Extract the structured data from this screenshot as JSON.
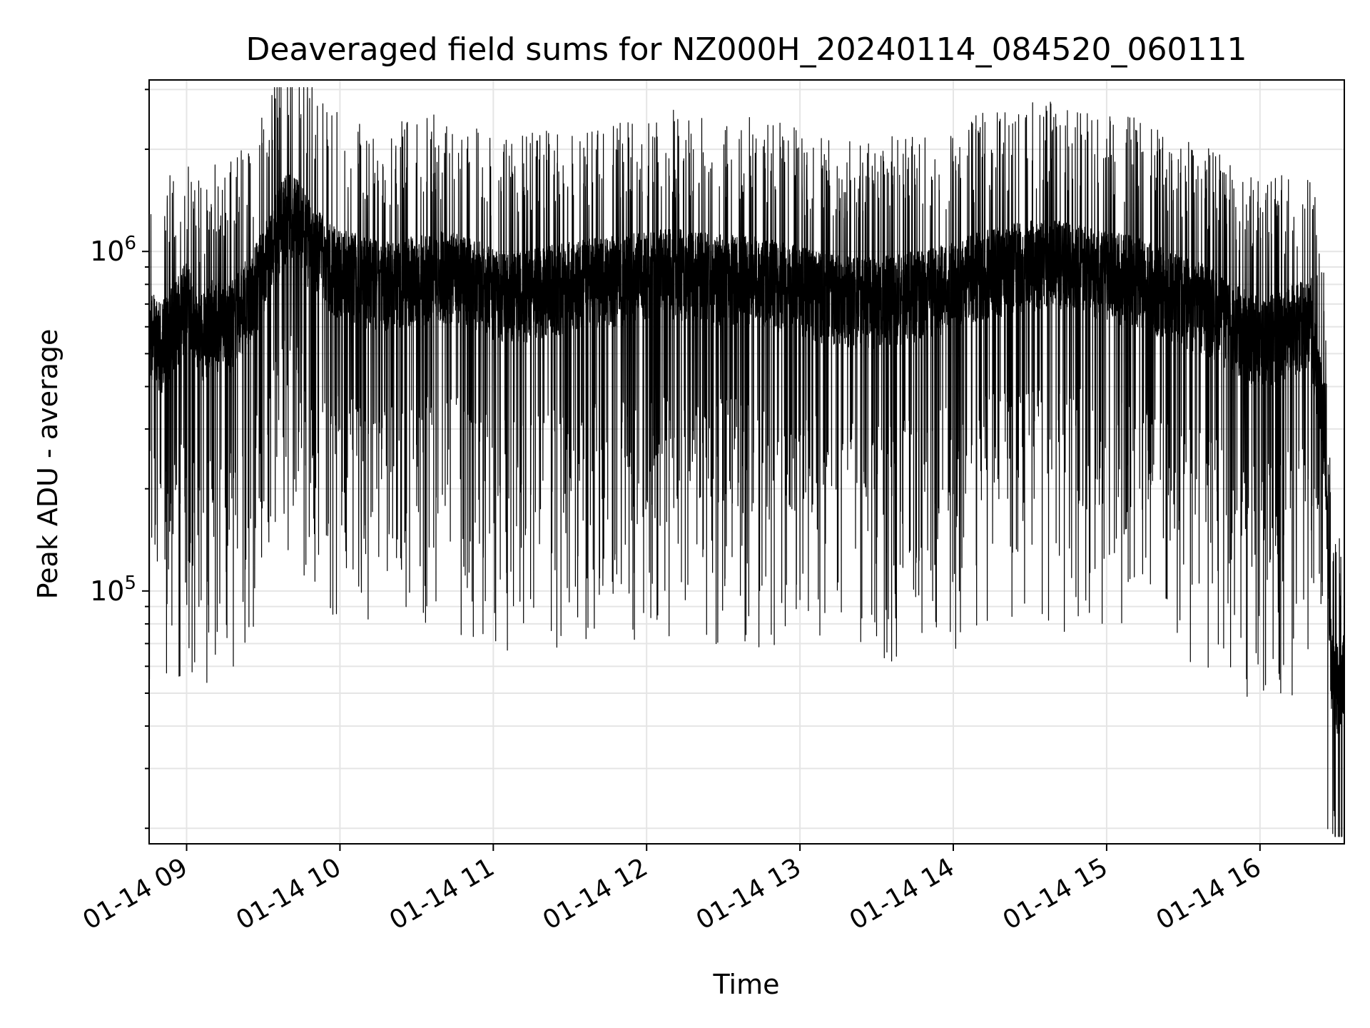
{
  "chart_data": {
    "type": "line",
    "title": "Deaveraged field sums for NZ000H_20240114_084520_060111",
    "xlabel": "Time",
    "ylabel": "Peak ADU - average",
    "yscale": "log",
    "grid": true,
    "line_color": "#000000",
    "grid_color": "#e5e5e5",
    "x_range": [
      "01-14 08:45:20",
      "01-14 16:33:00"
    ],
    "ylim": [
      18000,
      3200000
    ],
    "x_tick_labels": [
      "01-14 09",
      "01-14 10",
      "01-14 11",
      "01-14 12",
      "01-14 13",
      "01-14 14",
      "01-14 15",
      "01-14 16"
    ],
    "y_tick_labels": [
      {
        "base": "10",
        "exp": "5",
        "value": 100000
      },
      {
        "base": "10",
        "exp": "6",
        "value": 1000000
      }
    ],
    "series": [
      {
        "points": [
          [
            "01-14 08:45",
            620000
          ],
          [
            "01-14 08:50",
            540000
          ],
          [
            "01-14 08:55",
            620000
          ],
          [
            "01-14 09:00",
            720000
          ],
          [
            "01-14 09:05",
            560000
          ],
          [
            "01-14 09:10",
            640000
          ],
          [
            "01-14 09:15",
            600000
          ],
          [
            "01-14 09:20",
            680000
          ],
          [
            "01-14 09:25",
            760000
          ],
          [
            "01-14 09:30",
            900000
          ],
          [
            "01-14 09:35",
            1150000
          ],
          [
            "01-14 09:40",
            1350000
          ],
          [
            "01-14 09:45",
            1200000
          ],
          [
            "01-14 09:50",
            1050000
          ],
          [
            "01-14 09:55",
            950000
          ],
          [
            "01-14 10:00",
            900000
          ],
          [
            "01-14 10:10",
            850000
          ],
          [
            "01-14 10:20",
            820000
          ],
          [
            "01-14 10:30",
            860000
          ],
          [
            "01-14 10:40",
            880000
          ],
          [
            "01-14 10:50",
            860000
          ],
          [
            "01-14 11:00",
            780000
          ],
          [
            "01-14 11:10",
            760000
          ],
          [
            "01-14 11:20",
            800000
          ],
          [
            "01-14 11:30",
            820000
          ],
          [
            "01-14 11:40",
            850000
          ],
          [
            "01-14 11:50",
            860000
          ],
          [
            "01-14 12:00",
            880000
          ],
          [
            "01-14 12:10",
            900000
          ],
          [
            "01-14 12:20",
            880000
          ],
          [
            "01-14 12:30",
            860000
          ],
          [
            "01-14 12:40",
            860000
          ],
          [
            "01-14 12:50",
            830000
          ],
          [
            "01-14 13:00",
            800000
          ],
          [
            "01-14 13:10",
            760000
          ],
          [
            "01-14 13:20",
            740000
          ],
          [
            "01-14 13:30",
            740000
          ],
          [
            "01-14 13:40",
            760000
          ],
          [
            "01-14 13:50",
            780000
          ],
          [
            "01-14 14:00",
            820000
          ],
          [
            "01-14 14:10",
            880000
          ],
          [
            "01-14 14:20",
            920000
          ],
          [
            "01-14 14:30",
            950000
          ],
          [
            "01-14 14:40",
            960000
          ],
          [
            "01-14 14:50",
            920000
          ],
          [
            "01-14 15:00",
            880000
          ],
          [
            "01-14 15:10",
            860000
          ],
          [
            "01-14 15:20",
            800000
          ],
          [
            "01-14 15:30",
            740000
          ],
          [
            "01-14 15:40",
            700000
          ],
          [
            "01-14 15:50",
            620000
          ],
          [
            "01-14 16:00",
            560000
          ],
          [
            "01-14 16:10",
            600000
          ],
          [
            "01-14 16:20",
            650000
          ],
          [
            "01-14 16:25",
            300000
          ],
          [
            "01-14 16:28",
            60000
          ],
          [
            "01-14 16:31",
            52000
          ],
          [
            "01-14 16:33",
            58000
          ]
        ]
      }
    ]
  }
}
